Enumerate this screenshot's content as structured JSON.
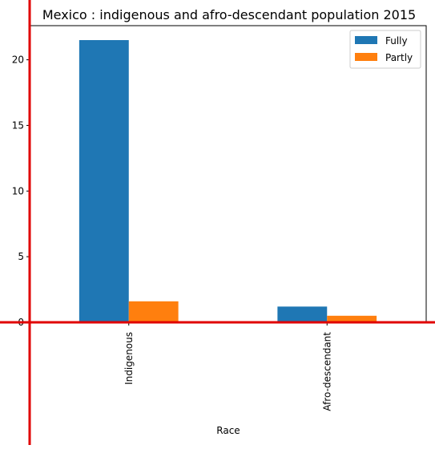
{
  "chart_data": {
    "type": "bar",
    "title": "Mexico : indigenous and afro-descendant population 2015",
    "xlabel": "Race",
    "ylabel": "",
    "categories": [
      "Indigenous",
      "Afro-descendant"
    ],
    "series": [
      {
        "name": "Fully",
        "values": [
          21.5,
          1.2
        ],
        "color": "#1f77b4"
      },
      {
        "name": "Partly",
        "values": [
          1.6,
          0.5
        ],
        "color": "#ff7f0e"
      }
    ],
    "yticks": [
      0,
      5,
      10,
      15,
      20
    ],
    "ylim": [
      0,
      22.6
    ],
    "grid": false,
    "legend_position": "top-right",
    "axis_line_color": "#e00000"
  }
}
